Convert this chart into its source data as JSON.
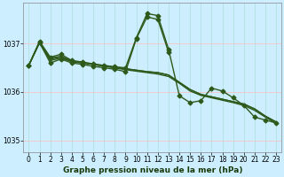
{
  "bg_color": "#cceeff",
  "line_color": "#2d5a1b",
  "grid_color_v": "#aadddd",
  "grid_color_h": "#ffbbbb",
  "xlabel": "Graphe pression niveau de la mer (hPa)",
  "xlim": [
    -0.5,
    23.5
  ],
  "ylim": [
    1034.75,
    1037.85
  ],
  "yticks": [
    1035,
    1036,
    1037
  ],
  "xticks": [
    0,
    1,
    2,
    3,
    4,
    5,
    6,
    7,
    8,
    9,
    10,
    11,
    12,
    13,
    14,
    15,
    16,
    17,
    18,
    19,
    20,
    21,
    22,
    23
  ],
  "series": [
    {
      "x": [
        0,
        1,
        2,
        3,
        4,
        5,
        6,
        7,
        8,
        9,
        10,
        11,
        12,
        13,
        14,
        15,
        16,
        17,
        18,
        19,
        20,
        21,
        22,
        23
      ],
      "y": [
        1036.55,
        1037.05,
        1036.72,
        1036.78,
        1036.65,
        1036.62,
        1036.58,
        1036.55,
        1036.52,
        1036.5,
        1037.12,
        1037.62,
        1037.58,
        1036.88,
        1035.92,
        1035.78,
        1035.82,
        1036.08,
        1036.02,
        1035.88,
        1035.72,
        1035.48,
        1035.42,
        1035.36
      ],
      "marker": true,
      "lw": 1.0
    },
    {
      "x": [
        0,
        1,
        2,
        3,
        4,
        5,
        6,
        7,
        8,
        9,
        10,
        11,
        12,
        13,
        14,
        15,
        16,
        17,
        18,
        19,
        20,
        21,
        22,
        23
      ],
      "y": [
        1036.55,
        1037.02,
        1036.68,
        1036.72,
        1036.63,
        1036.6,
        1036.57,
        1036.54,
        1036.51,
        1036.48,
        1036.45,
        1036.42,
        1036.4,
        1036.35,
        1036.2,
        1036.05,
        1035.95,
        1035.9,
        1035.85,
        1035.8,
        1035.75,
        1035.65,
        1035.5,
        1035.38
      ],
      "marker": false,
      "lw": 1.0
    },
    {
      "x": [
        0,
        1,
        2,
        3,
        4,
        5,
        6,
        7,
        8,
        9,
        10,
        11,
        12,
        13,
        14,
        15,
        16,
        17,
        18,
        19,
        20,
        21,
        22,
        23
      ],
      "y": [
        1036.55,
        1037.02,
        1036.7,
        1036.74,
        1036.64,
        1036.61,
        1036.57,
        1036.54,
        1036.51,
        1036.48,
        1036.45,
        1036.42,
        1036.4,
        1036.35,
        1036.2,
        1036.05,
        1035.95,
        1035.9,
        1035.85,
        1035.8,
        1035.75,
        1035.65,
        1035.5,
        1035.38
      ],
      "marker": false,
      "lw": 1.0
    },
    {
      "x": [
        0,
        1,
        2,
        3,
        4,
        5,
        6,
        7,
        8,
        9,
        10,
        11,
        12,
        13,
        14,
        15,
        16,
        17,
        18,
        19,
        20,
        21,
        22,
        23
      ],
      "y": [
        1036.55,
        1037.02,
        1036.65,
        1036.7,
        1036.63,
        1036.6,
        1036.57,
        1036.53,
        1036.5,
        1036.46,
        1036.43,
        1036.4,
        1036.37,
        1036.32,
        1036.18,
        1036.02,
        1035.93,
        1035.88,
        1035.83,
        1035.78,
        1035.72,
        1035.62,
        1035.48,
        1035.35
      ],
      "marker": false,
      "lw": 1.0
    },
    {
      "x": [
        0,
        1,
        2,
        3,
        4,
        5,
        6,
        7,
        8,
        9,
        10,
        11,
        12,
        13
      ],
      "y": [
        1036.55,
        1037.02,
        1036.6,
        1036.68,
        1036.6,
        1036.57,
        1036.53,
        1036.5,
        1036.47,
        1036.42,
        1037.1,
        1037.55,
        1037.5,
        1036.82
      ],
      "marker": true,
      "lw": 1.0
    }
  ],
  "marker": "D",
  "markersize": 2.5,
  "tick_fontsize": 5.5,
  "label_fontsize": 6.5
}
